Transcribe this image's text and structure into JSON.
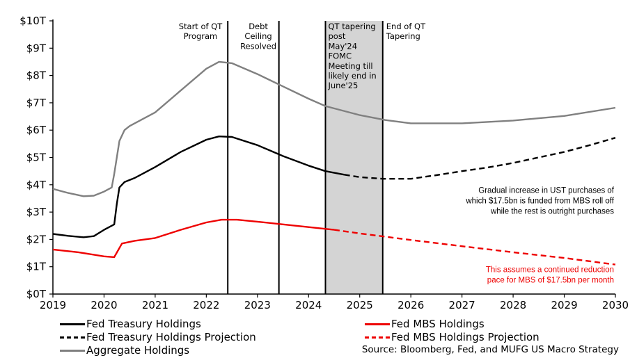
{
  "chart_data": {
    "type": "line",
    "title": "",
    "xlabel": "",
    "ylabel": "",
    "xlim": [
      2019,
      2030
    ],
    "ylim": [
      0,
      10
    ],
    "x_ticks": [
      "2019",
      "2020",
      "2021",
      "2022",
      "2023",
      "2024",
      "2025",
      "2026",
      "2027",
      "2028",
      "2029",
      "2030"
    ],
    "y_ticks": [
      "$0T",
      "$1T",
      "$2T",
      "$3T",
      "$4T",
      "$5T",
      "$6T",
      "$7T",
      "$8T",
      "$9T",
      "$10T"
    ],
    "grid": false,
    "legend_position": "bottom",
    "shaded_region": {
      "x": [
        2024.33,
        2025.45
      ],
      "label": "QT tapering post May'24 FOMC Meeting till likely end in June'25",
      "label_lines": [
        "QT tapering",
        "post",
        "May'24",
        "FOMC",
        "Meeting till",
        "likely end in",
        "June'25"
      ]
    },
    "vertical_lines": [
      {
        "x": 2022.42,
        "label_lines": [
          "Start of QT",
          "Program"
        ]
      },
      {
        "x": 2023.42,
        "label_lines": [
          "Debt",
          "Ceiling",
          "Resolved"
        ]
      },
      {
        "x": 2024.33,
        "label_lines": []
      },
      {
        "x": 2025.45,
        "label_lines": [
          "End of QT",
          "Tapering"
        ]
      }
    ],
    "series": [
      {
        "name": "Fed Treasury Holdings",
        "color": "#000000",
        "style": "solid",
        "x": [
          2019.0,
          2019.3,
          2019.6,
          2019.8,
          2020.0,
          2020.2,
          2020.25,
          2020.3,
          2020.4,
          2020.6,
          2021.0,
          2021.5,
          2022.0,
          2022.25,
          2022.5,
          2023.0,
          2023.5,
          2024.0,
          2024.33,
          2024.7
        ],
        "y": [
          2.2,
          2.13,
          2.08,
          2.12,
          2.35,
          2.55,
          3.3,
          3.9,
          4.1,
          4.25,
          4.65,
          5.2,
          5.65,
          5.77,
          5.75,
          5.45,
          5.05,
          4.7,
          4.5,
          4.37
        ]
      },
      {
        "name": "Fed Treasury Holdings Projection",
        "color": "#000000",
        "style": "dashed",
        "x": [
          2024.7,
          2025.0,
          2025.45,
          2026.0,
          2026.5,
          2027.0,
          2027.5,
          2028.0,
          2028.5,
          2029.0,
          2029.5,
          2030.0
        ],
        "y": [
          4.37,
          4.28,
          4.22,
          4.22,
          4.35,
          4.5,
          4.63,
          4.8,
          5.0,
          5.2,
          5.45,
          5.72
        ]
      },
      {
        "name": "Fed MBS Holdings",
        "color": "#ee0000",
        "style": "solid",
        "x": [
          2019.0,
          2019.5,
          2020.0,
          2020.2,
          2020.35,
          2020.6,
          2021.0,
          2021.5,
          2022.0,
          2022.3,
          2022.6,
          2023.0,
          2023.5,
          2024.0,
          2024.5
        ],
        "y": [
          1.63,
          1.53,
          1.38,
          1.35,
          1.85,
          1.95,
          2.05,
          2.35,
          2.62,
          2.72,
          2.72,
          2.65,
          2.55,
          2.45,
          2.35
        ]
      },
      {
        "name": "Fed MBS Holdings Projection",
        "color": "#ee0000",
        "style": "dashed",
        "x": [
          2024.5,
          2025.0,
          2026.0,
          2027.0,
          2028.0,
          2029.0,
          2030.0
        ],
        "y": [
          2.35,
          2.22,
          1.98,
          1.75,
          1.53,
          1.32,
          1.08
        ]
      },
      {
        "name": "Aggregate Holdings",
        "color": "#808080",
        "style": "solid",
        "x": [
          2019.0,
          2019.3,
          2019.6,
          2019.8,
          2020.0,
          2020.15,
          2020.2,
          2020.3,
          2020.4,
          2020.5,
          2021.0,
          2021.5,
          2022.0,
          2022.25,
          2022.5,
          2023.0,
          2023.5,
          2024.0,
          2024.33,
          2025.0,
          2025.5,
          2026.0,
          2027.0,
          2028.0,
          2029.0,
          2030.0
        ],
        "y": [
          3.85,
          3.7,
          3.58,
          3.6,
          3.75,
          3.9,
          4.4,
          5.6,
          6.0,
          6.15,
          6.65,
          7.45,
          8.25,
          8.5,
          8.45,
          8.05,
          7.6,
          7.15,
          6.88,
          6.55,
          6.37,
          6.25,
          6.25,
          6.35,
          6.52,
          6.82
        ]
      }
    ],
    "annotations": [
      {
        "x": 2030,
        "y": 3.5,
        "color": "#000000",
        "lines": [
          "Gradual increase in UST purchases of",
          "which $17.5bn is funded from MBS roll off",
          "while the rest is outright purchases"
        ]
      },
      {
        "x": 2030,
        "y": 0.6,
        "color": "#ee0000",
        "lines": [
          "This assumes a continued reduction",
          "pace for MBS of $17.5bn per month"
        ]
      }
    ]
  },
  "source": "Source: Bloomberg, Fed, and MUFG US Macro Strategy"
}
